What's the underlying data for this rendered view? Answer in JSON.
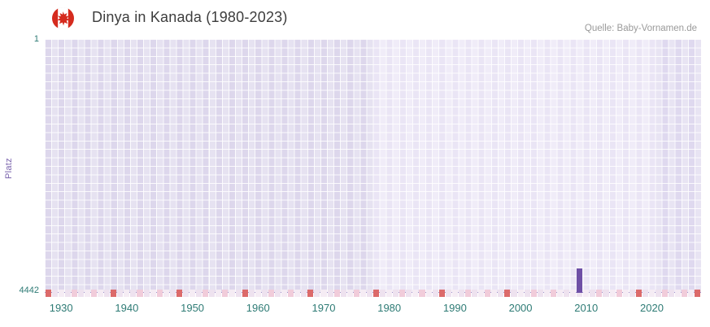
{
  "header": {
    "title": "Dinya in Kanada (1980-2023)",
    "source": "Quelle: Baby-Vornamen.de",
    "flag_icon": "canada-flag"
  },
  "chart_data": {
    "type": "bar",
    "title": "Dinya in Kanada (1980-2023)",
    "xlabel": "",
    "ylabel": "Platz",
    "y_axis": {
      "top_label": "1",
      "bottom_label": "4442",
      "best": 1,
      "worst": 4442,
      "inverted": true
    },
    "x_range": [
      1928,
      2028
    ],
    "x_ticks": [
      "1930",
      "1940",
      "1950",
      "1960",
      "1970",
      "1980",
      "1990",
      "2000",
      "2010",
      "2020"
    ],
    "grid": true,
    "legend": "none",
    "bar_color": "#6e4fa6",
    "series": [
      {
        "name": "Platz",
        "points": [
          {
            "year": 2009,
            "rank": 4015
          }
        ]
      }
    ],
    "bg_regions": [
      {
        "from": 1928,
        "to": 1978,
        "color": "#ddd7ec"
      },
      {
        "from": 1978,
        "to": 2021,
        "color": "#eae5f5"
      },
      {
        "from": 2021,
        "to": 2028,
        "color": "#dfd9ef"
      }
    ],
    "heat_strip": {
      "start_year": 1928,
      "end_year": 2027,
      "alt_colors": [
        "#f5ecf4",
        "#eee2ef"
      ],
      "marks": [
        {
          "year": 1928,
          "color": "#dc6a6a"
        },
        {
          "year": 1938,
          "color": "#dc6a6a"
        },
        {
          "year": 1948,
          "color": "#dc6a6a"
        },
        {
          "year": 1958,
          "color": "#dc6a6a"
        },
        {
          "year": 1968,
          "color": "#dc6a6a"
        },
        {
          "year": 1978,
          "color": "#dc6a6a"
        },
        {
          "year": 1988,
          "color": "#dc6a6a"
        },
        {
          "year": 1998,
          "color": "#dc6a6a"
        },
        {
          "year": 2018,
          "color": "#dc6a6a"
        },
        {
          "year": 2027,
          "color": "#dc6a6a"
        },
        {
          "year": 1932,
          "color": "#f1ccda"
        },
        {
          "year": 1935,
          "color": "#f1ccda"
        },
        {
          "year": 1942,
          "color": "#f1ccda"
        },
        {
          "year": 1945,
          "color": "#f1ccda"
        },
        {
          "year": 1952,
          "color": "#f1ccda"
        },
        {
          "year": 1955,
          "color": "#f1ccda"
        },
        {
          "year": 1962,
          "color": "#f1ccda"
        },
        {
          "year": 1965,
          "color": "#f1ccda"
        },
        {
          "year": 1972,
          "color": "#f1ccda"
        },
        {
          "year": 1975,
          "color": "#f1ccda"
        },
        {
          "year": 1982,
          "color": "#f1ccda"
        },
        {
          "year": 1985,
          "color": "#f1ccda"
        },
        {
          "year": 1992,
          "color": "#f1ccda"
        },
        {
          "year": 1995,
          "color": "#f1ccda"
        },
        {
          "year": 2002,
          "color": "#f1ccda"
        },
        {
          "year": 2005,
          "color": "#f1ccda"
        },
        {
          "year": 2012,
          "color": "#f1ccda"
        },
        {
          "year": 2015,
          "color": "#f1ccda"
        },
        {
          "year": 2022,
          "color": "#f1ccda"
        },
        {
          "year": 2025,
          "color": "#f1ccda"
        }
      ]
    }
  }
}
